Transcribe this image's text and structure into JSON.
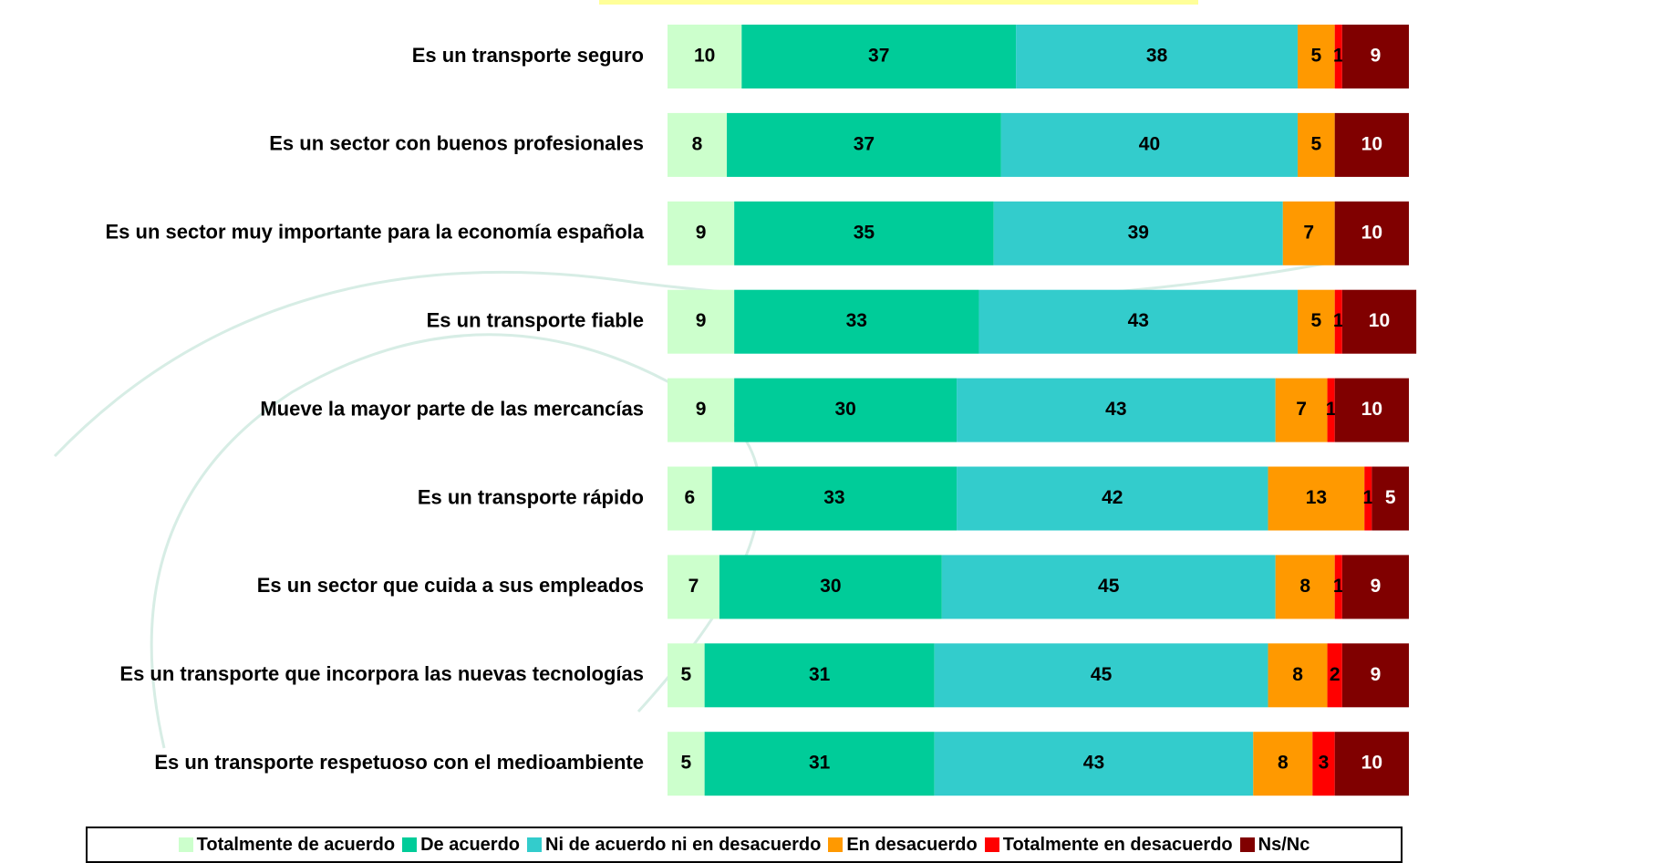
{
  "chart_data": {
    "type": "stacked-bar-horizontal",
    "categories": [
      "Es un transporte seguro",
      "Es un sector con buenos profesionales",
      "Es un sector muy importante para la economía española",
      "Es un transporte fiable",
      "Mueve la mayor parte de las mercancías",
      "Es un transporte rápido",
      "Es un sector que cuida a sus empleados",
      "Es un transporte que incorpora las nuevas tecnologías",
      "Es un transporte respetuoso con el medioambiente"
    ],
    "series": [
      {
        "name": "Totalmente de acuerdo",
        "color": "#ccffcc",
        "values": [
          10,
          8,
          9,
          9,
          9,
          6,
          7,
          5,
          5
        ]
      },
      {
        "name": "De acuerdo",
        "color": "#00cc99",
        "values": [
          37,
          37,
          35,
          33,
          30,
          33,
          30,
          31,
          31
        ]
      },
      {
        "name": "Ni de acuerdo ni en desacuerdo",
        "color": "#33cccc",
        "values": [
          38,
          40,
          39,
          43,
          43,
          42,
          45,
          45,
          43
        ]
      },
      {
        "name": "En desacuerdo",
        "color": "#ff9900",
        "values": [
          5,
          5,
          7,
          5,
          7,
          13,
          8,
          8,
          8
        ]
      },
      {
        "name": "Totalmente en desacuerdo",
        "color": "#ff0000",
        "values": [
          1,
          null,
          null,
          1,
          1,
          1,
          1,
          2,
          3
        ]
      },
      {
        "name": "Ns/Nc",
        "color": "#800000",
        "values": [
          9,
          10,
          10,
          10,
          10,
          5,
          9,
          9,
          10
        ]
      }
    ]
  }
}
